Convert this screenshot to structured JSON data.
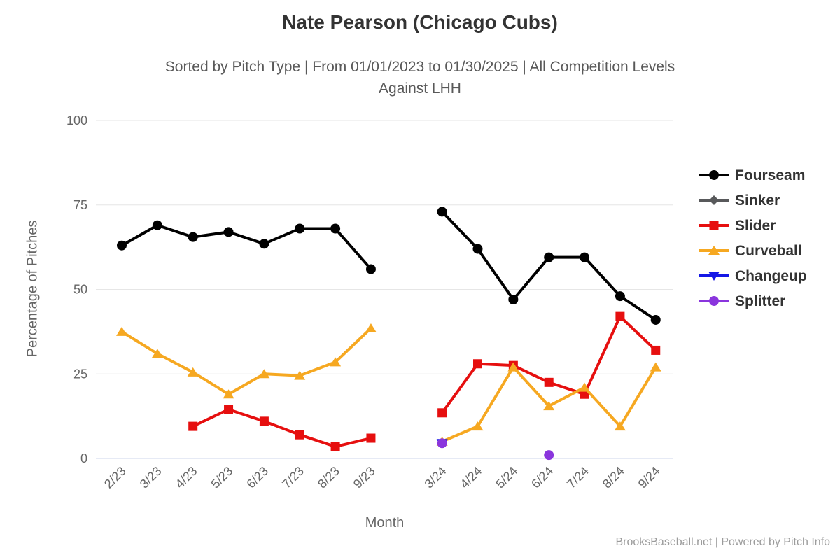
{
  "header": {
    "title": "Nate Pearson (Chicago Cubs)",
    "subtitle_line1": "Sorted by Pitch Type | From 01/01/2023 to 01/30/2025 | All Competition Levels",
    "subtitle_line2": "Against LHH"
  },
  "axes": {
    "y_title": "Percentage of Pitches",
    "x_title": "Month"
  },
  "footer": {
    "credit": "BrooksBaseball.net | Powered by Pitch Info"
  },
  "colors": {
    "grid": "#e6e6e6",
    "axis_line": "#ccd6eb",
    "tick_text": "#666666",
    "legend_text": "#333333"
  },
  "chart_data": {
    "type": "line",
    "title": "Nate Pearson (Chicago Cubs)",
    "subtitle": "Sorted by Pitch Type | From 01/01/2023 to 01/30/2025 | All Competition Levels Against LHH",
    "xlabel": "Month",
    "ylabel": "Percentage of Pitches",
    "ylim": [
      0,
      100
    ],
    "yticks": [
      0,
      25,
      50,
      75,
      100
    ],
    "grid": "horizontal-only",
    "legend_position": "right",
    "x_note": "category axis with one empty slot gap between 9/23 and 3/24",
    "categories": [
      "2/23",
      "3/23",
      "4/23",
      "5/23",
      "6/23",
      "7/23",
      "8/23",
      "9/23",
      "3/24",
      "4/24",
      "5/24",
      "6/24",
      "7/24",
      "8/24",
      "9/24"
    ],
    "slots": [
      0,
      1,
      2,
      3,
      4,
      5,
      6,
      7,
      9,
      10,
      11,
      12,
      13,
      14,
      15
    ],
    "series": [
      {
        "name": "Fourseam",
        "color": "#000000",
        "marker": "circle",
        "values": [
          63,
          69,
          65.5,
          67,
          63.5,
          68,
          68,
          56,
          73,
          62,
          47,
          59.5,
          59.5,
          48,
          41
        ]
      },
      {
        "name": "Sinker",
        "color": "#58595b",
        "marker": "diamond",
        "values": [
          null,
          null,
          null,
          null,
          null,
          null,
          null,
          null,
          null,
          null,
          null,
          null,
          null,
          null,
          null
        ]
      },
      {
        "name": "Slider",
        "color": "#e60f0f",
        "marker": "square",
        "values": [
          null,
          null,
          9.5,
          14.5,
          11,
          7,
          3.5,
          6,
          13.5,
          28,
          27.5,
          22.5,
          19,
          42,
          32
        ]
      },
      {
        "name": "Curveball",
        "color": "#f6a821",
        "marker": "triangle-up",
        "values": [
          37.5,
          31,
          25.5,
          19,
          25,
          24.5,
          28.5,
          38.5,
          5,
          9.5,
          27,
          15.5,
          21,
          9.5,
          27
        ]
      },
      {
        "name": "Changeup",
        "color": "#1518e6",
        "marker": "triangle-down",
        "values": [
          null,
          null,
          null,
          null,
          null,
          null,
          null,
          null,
          4.5,
          null,
          null,
          null,
          null,
          null,
          null
        ]
      },
      {
        "name": "Splitter",
        "color": "#8a35dd",
        "marker": "circle",
        "values": [
          null,
          null,
          null,
          null,
          null,
          null,
          null,
          null,
          4.5,
          null,
          null,
          1,
          null,
          null,
          null
        ]
      }
    ]
  }
}
